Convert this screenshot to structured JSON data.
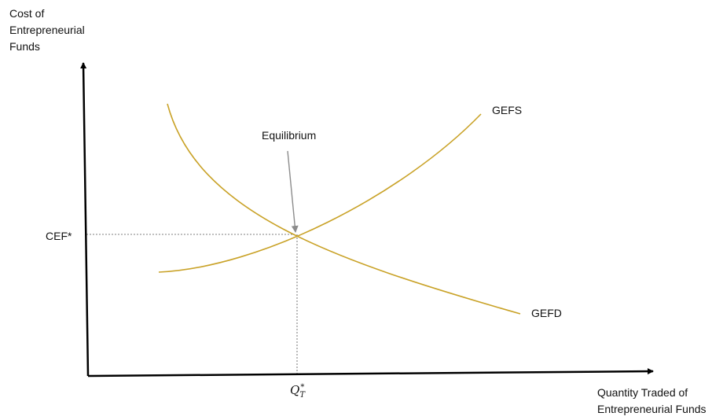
{
  "diagram": {
    "y_axis_label": "Cost of\nEntrepreneurial\nFunds",
    "x_axis_label": "Quantity Traded of\nEntrepreneurial Funds",
    "price_tick_label": "CEF*",
    "quantity_tick": {
      "base": "Q",
      "superscript": "*",
      "subscript": "T"
    },
    "annotation": "Equilibrium",
    "supply_label": "GEFS",
    "demand_label": "GEFD",
    "colors": {
      "curves": "#C9A227",
      "axes": "#000000",
      "arrow": "#8C8C8C",
      "guides": "#555555"
    }
  }
}
